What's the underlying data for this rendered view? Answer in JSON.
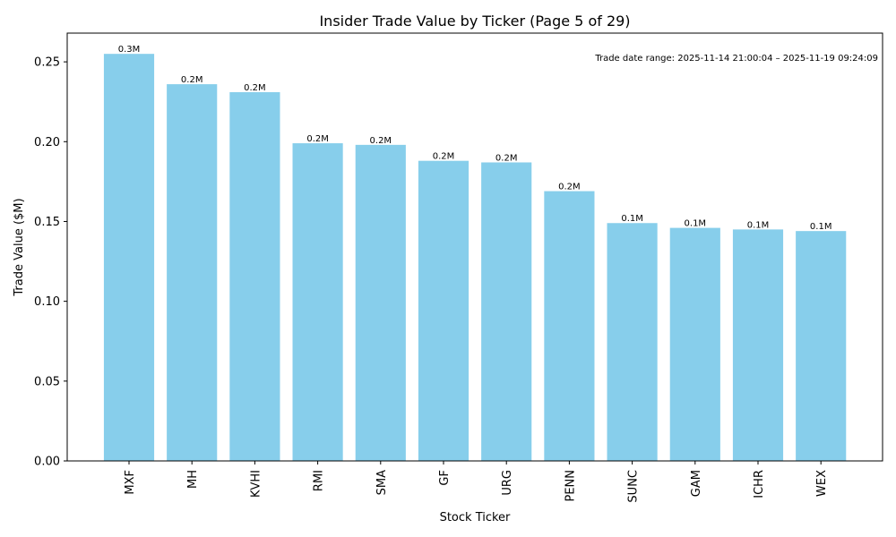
{
  "chart_data": {
    "type": "bar",
    "title": "Insider Trade Value by Ticker (Page 5 of 29)",
    "xlabel": "Stock Ticker",
    "ylabel": "Trade Value ($M)",
    "categories": [
      "MXF",
      "MH",
      "KVHI",
      "RMI",
      "SMA",
      "GF",
      "URG",
      "PENN",
      "SUNC",
      "GAM",
      "ICHR",
      "WEX"
    ],
    "values": [
      0.255,
      0.236,
      0.231,
      0.199,
      0.198,
      0.188,
      0.187,
      0.169,
      0.149,
      0.146,
      0.145,
      0.144
    ],
    "data_labels": [
      "0.3M",
      "0.2M",
      "0.2M",
      "0.2M",
      "0.2M",
      "0.2M",
      "0.2M",
      "0.2M",
      "0.1M",
      "0.1M",
      "0.1M",
      "0.1M"
    ],
    "ylim": [
      0,
      0.268
    ],
    "yticks": [
      0.0,
      0.05,
      0.1,
      0.15,
      0.2,
      0.25
    ],
    "ytick_labels": [
      "0.00",
      "0.05",
      "0.10",
      "0.15",
      "0.20",
      "0.25"
    ],
    "annotation": "Trade date range: 2025-11-14 21:00:04 – 2025-11-19 09:24:09",
    "grid": false,
    "bar_color": "#87ceeb"
  }
}
